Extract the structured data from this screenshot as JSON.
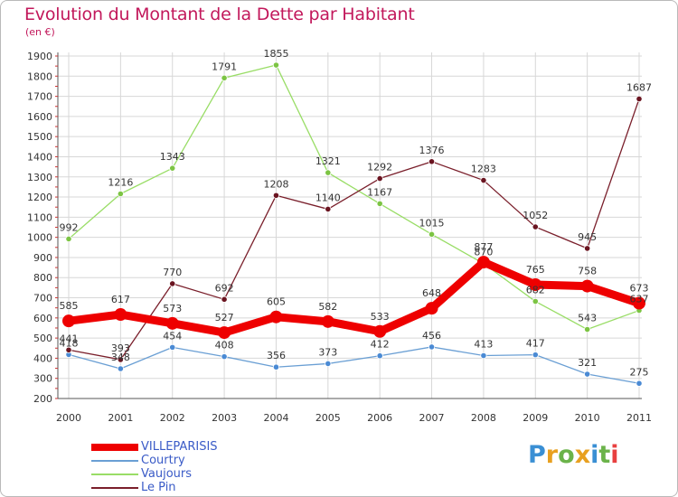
{
  "header": {
    "title": "Evolution du Montant de la Dette par Habitant",
    "subtitle": "(en €)"
  },
  "colors": {
    "title": "#c2185b",
    "grid": "#d7d7d7",
    "axis": "#555555",
    "legend_text": "#3a5bc7"
  },
  "legend": {
    "items": [
      {
        "label": "VILLEPARISIS",
        "color": "#ee0000"
      },
      {
        "label": "Courtry",
        "color": "#6a9fd4"
      },
      {
        "label": "Vaujours",
        "color": "#99dd66"
      },
      {
        "label": "Le Pin",
        "color": "#7a1f2b"
      }
    ]
  },
  "logo": {
    "text": "Proxiti",
    "letter_colors": [
      "#3a8fd4",
      "#e8a020",
      "#6bb34a",
      "#e8a020",
      "#3a8fd4",
      "#6bb34a",
      "#e84040"
    ]
  },
  "chart_data": {
    "type": "line",
    "title": "Evolution du Montant de la Dette par Habitant",
    "subtitle": "(en €)",
    "xlabel": "",
    "ylabel": "",
    "x": [
      "2000",
      "2001",
      "2002",
      "2003",
      "2004",
      "2005",
      "2006",
      "2007",
      "2008",
      "2009",
      "2010",
      "2011"
    ],
    "ylim": [
      200,
      1900
    ],
    "yticks": [
      200,
      300,
      400,
      500,
      600,
      700,
      800,
      900,
      1000,
      1100,
      1200,
      1300,
      1400,
      1500,
      1600,
      1700,
      1800,
      1900
    ],
    "grid": true,
    "legend_position": "bottom-left",
    "series": [
      {
        "name": "Courtry",
        "color": "#6a9fd4",
        "marker": "#4a8ad4",
        "width": 1.3,
        "radius": 3.2,
        "values": [
          418,
          348,
          454,
          408,
          356,
          373,
          412,
          456,
          413,
          417,
          321,
          275
        ],
        "labels": [
          "418",
          "348",
          "454",
          "408",
          "356",
          "373",
          "412",
          "456",
          "413",
          "417",
          "321",
          "275"
        ]
      },
      {
        "name": "Vaujours",
        "color": "#99dd66",
        "marker": "#7cc443",
        "width": 1.3,
        "radius": 3.2,
        "values": [
          992,
          1216,
          1343,
          1791,
          1855,
          1321,
          1167,
          1015,
          870,
          682,
          543,
          637
        ],
        "labels": [
          "992",
          "1216",
          "1343",
          "1791",
          "1855",
          "1321",
          "1167",
          "1015",
          "870",
          "682",
          "543",
          "637"
        ]
      },
      {
        "name": "Le Pin",
        "color": "#7a1f2b",
        "marker": "#6a1420",
        "width": 1.3,
        "radius": 3.2,
        "values": [
          441,
          393,
          770,
          692,
          1208,
          1140,
          1292,
          1376,
          1283,
          1052,
          945,
          1687
        ],
        "labels": [
          "441",
          "393",
          "770",
          "692",
          "1208",
          "1140",
          "1292",
          "1376",
          "1283",
          "1052",
          "945",
          "1687"
        ]
      },
      {
        "name": "VILLEPARISIS",
        "color": "#ee0000",
        "marker": "#ee0000",
        "width": 9,
        "radius": 7,
        "values": [
          585,
          617,
          573,
          527,
          605,
          582,
          533,
          648,
          877,
          765,
          758,
          673
        ],
        "labels": [
          "585",
          "617",
          "573",
          "527",
          "605",
          "582",
          "533",
          "648",
          "877",
          "765",
          "758",
          "673"
        ]
      }
    ]
  }
}
